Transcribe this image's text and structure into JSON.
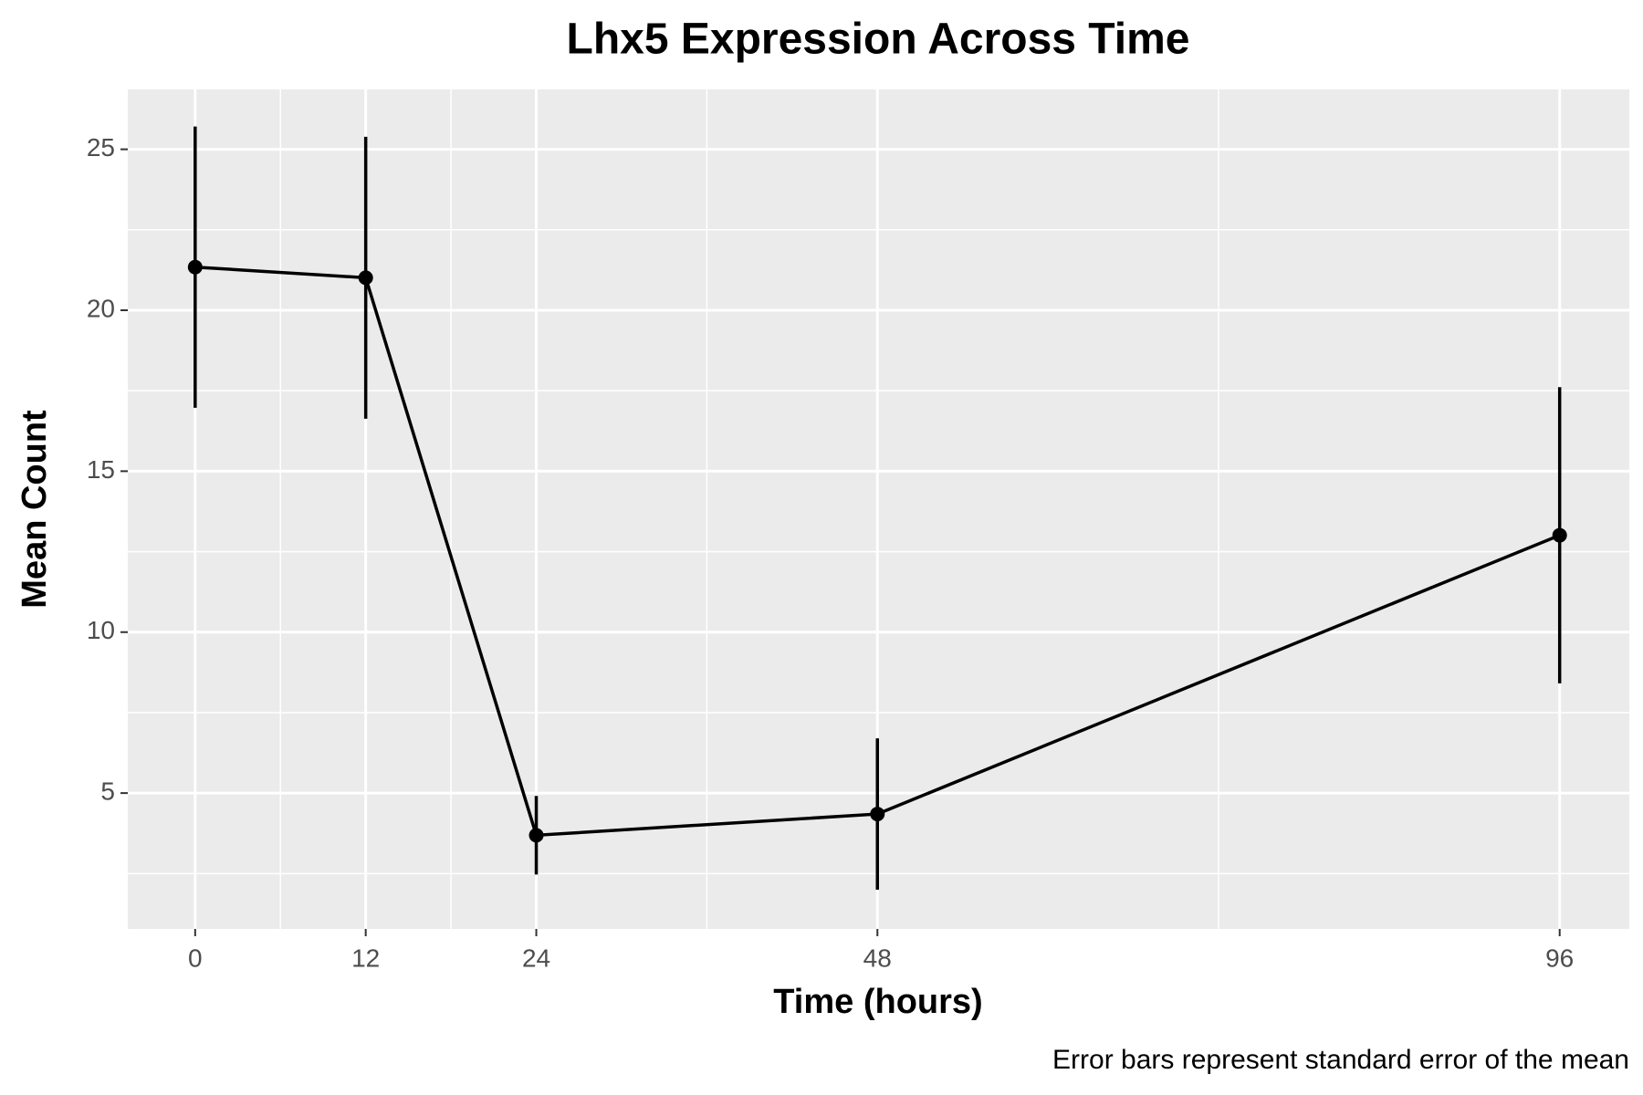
{
  "chart_data": {
    "type": "line",
    "title": "Lhx5 Expression Across Time",
    "x_label": "Time (hours)",
    "y_label": "Mean Count",
    "caption": "Error bars represent standard error of the mean",
    "x": [
      0,
      12,
      24,
      48,
      96
    ],
    "values": [
      21.34,
      21.01,
      3.69,
      4.35,
      13.01
    ],
    "errors": [
      4.37,
      4.38,
      1.22,
      2.35,
      4.6
    ],
    "color": "#000000",
    "xlim": [
      -4.74,
      100.9
    ],
    "xticks": [
      0,
      12,
      24,
      48,
      96
    ],
    "ylim": [
      0.78,
      26.86
    ],
    "yticks": [
      5,
      10,
      15,
      20,
      25
    ],
    "grid": true
  }
}
